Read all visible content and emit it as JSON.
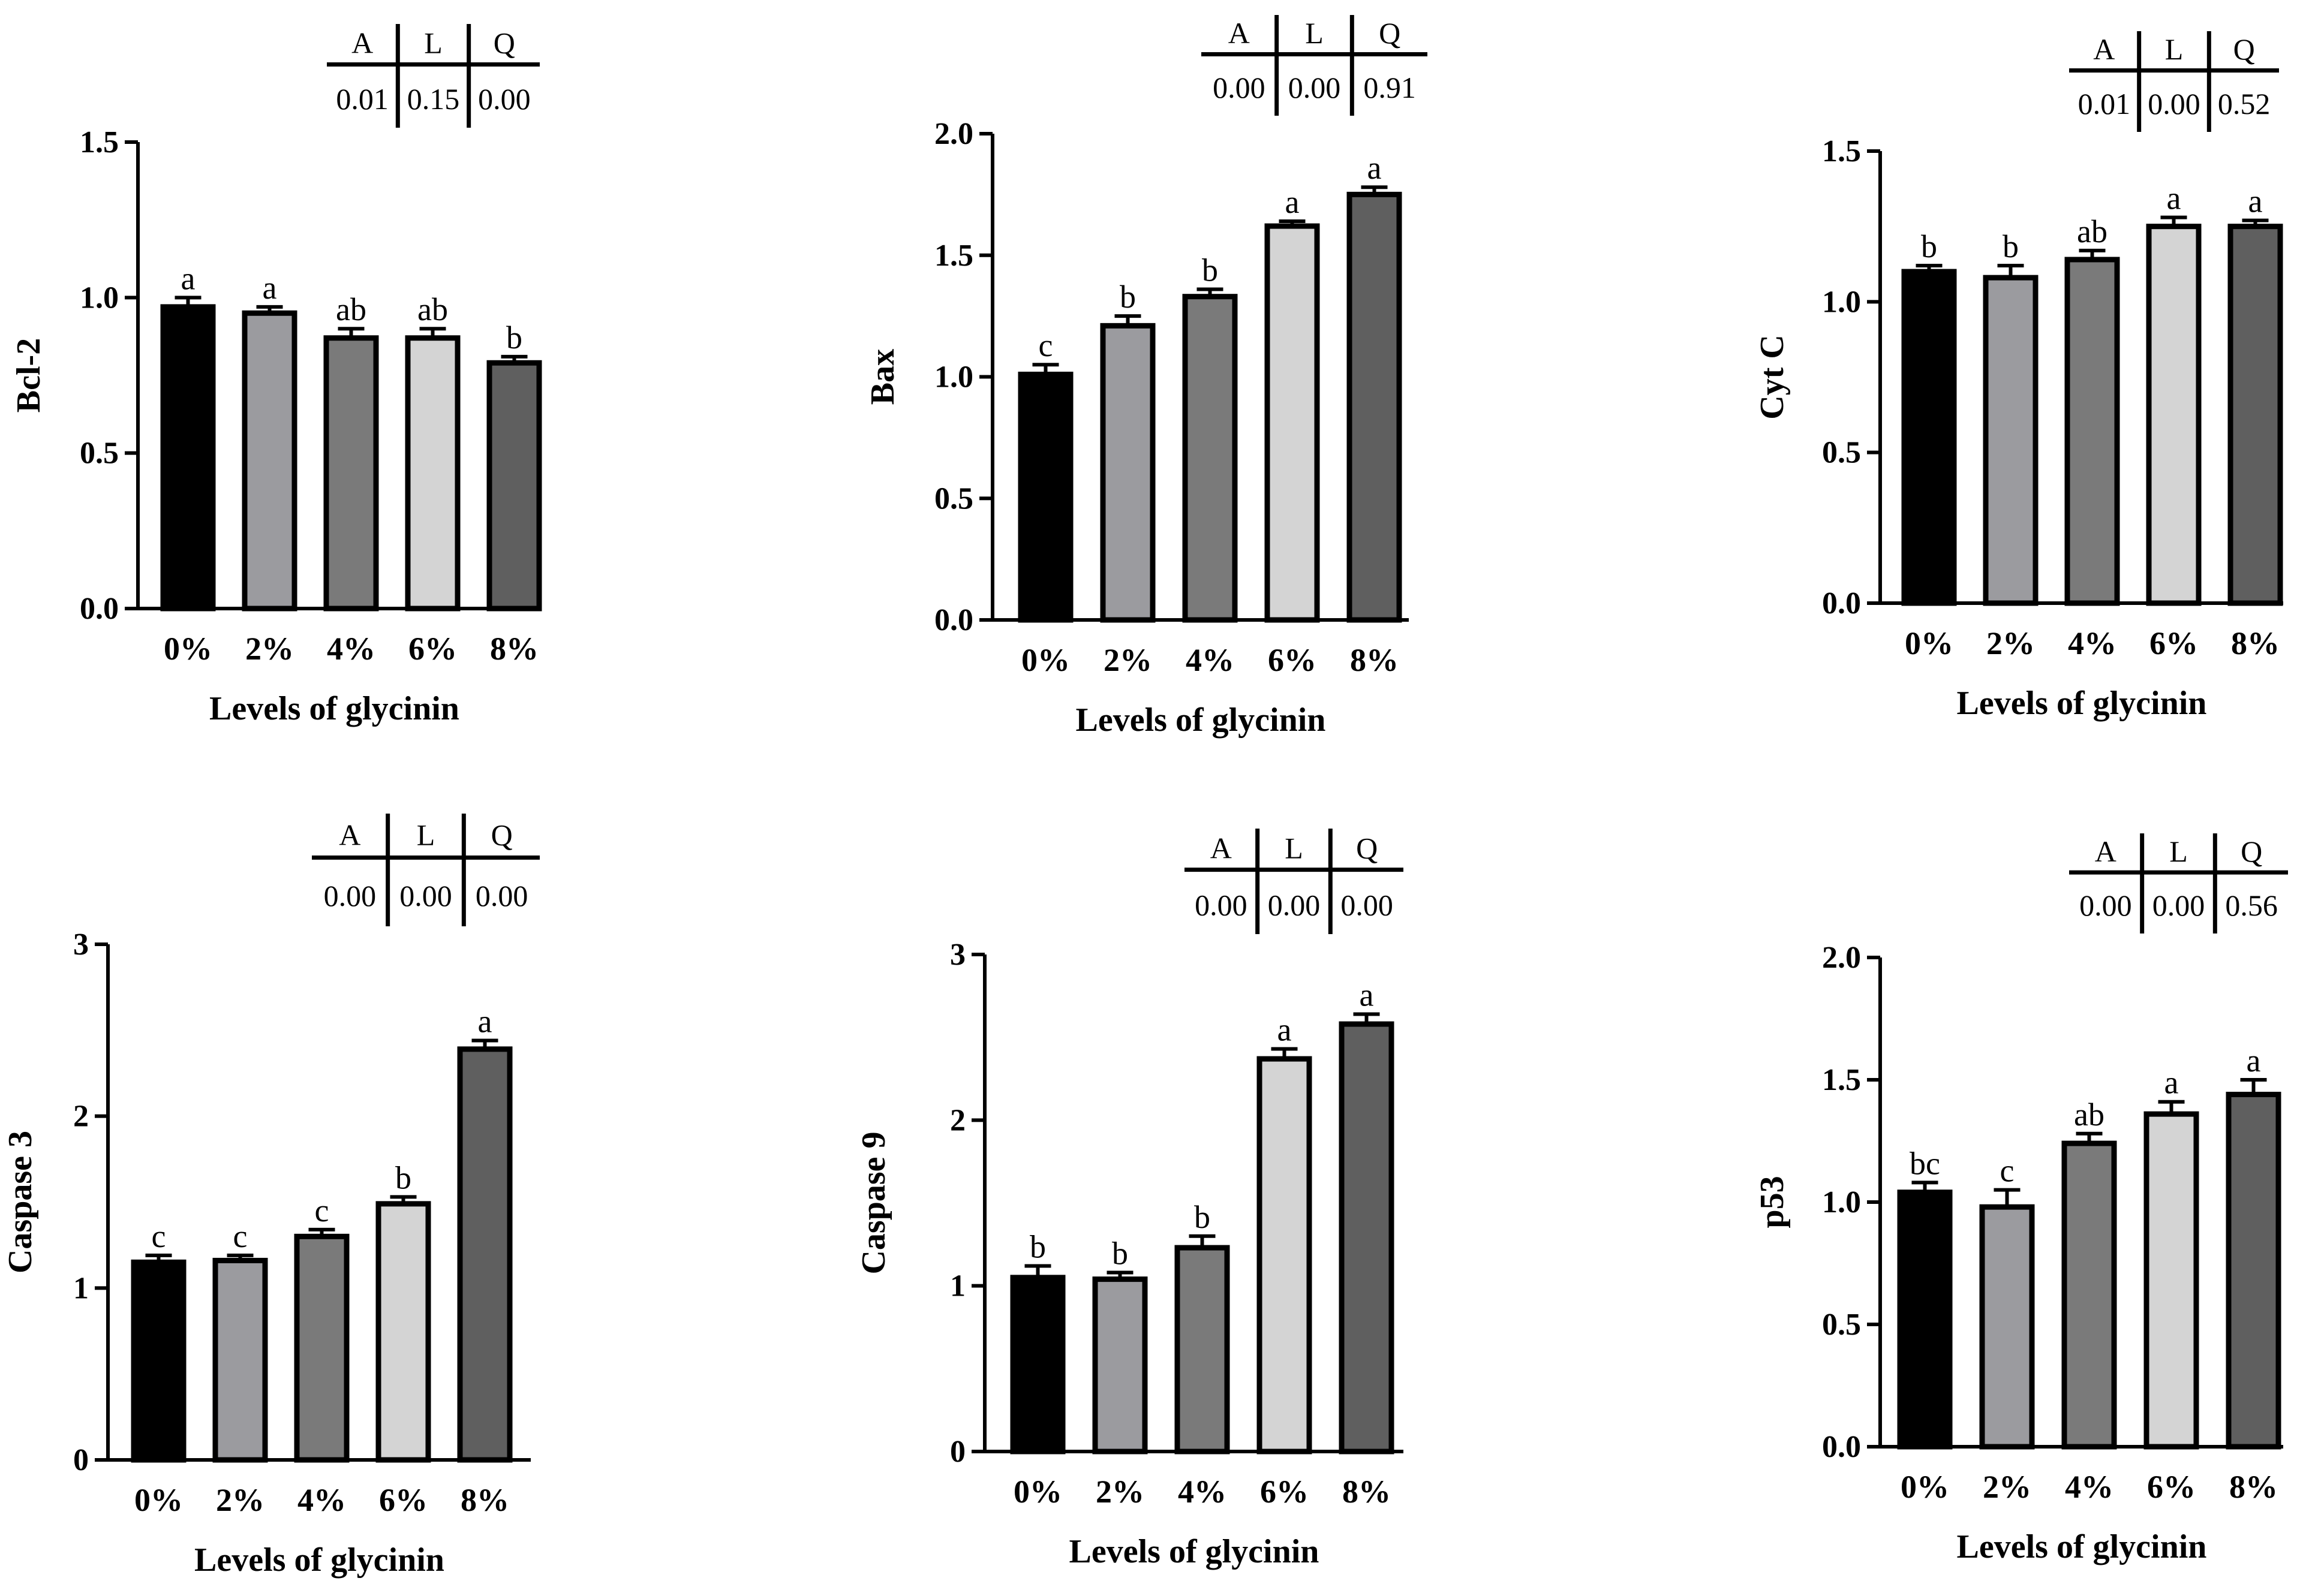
{
  "chart_data": [
    {
      "type": "bar",
      "ylabel": "Bcl-2",
      "xlabel": "Levels of glycinin",
      "categories": [
        "0%",
        "2%",
        "4%",
        "6%",
        "8%"
      ],
      "values": [
        0.97,
        0.95,
        0.87,
        0.87,
        0.79
      ],
      "errors": [
        0.03,
        0.02,
        0.03,
        0.03,
        0.02
      ],
      "letters": [
        "a",
        "a",
        "ab",
        "ab",
        "b"
      ],
      "ylim": [
        0,
        1.5
      ],
      "yticks": [
        "0.0",
        "0.5",
        "1.0",
        "1.5"
      ],
      "stats": {
        "headers": [
          "A",
          "L",
          "Q"
        ],
        "values": [
          "0.01",
          "0.15",
          "0.00"
        ]
      }
    },
    {
      "type": "bar",
      "ylabel": "Bax",
      "xlabel": "Levels of glycinin",
      "categories": [
        "0%",
        "2%",
        "4%",
        "6%",
        "8%"
      ],
      "values": [
        1.01,
        1.21,
        1.33,
        1.62,
        1.75
      ],
      "errors": [
        0.04,
        0.04,
        0.03,
        0.02,
        0.03
      ],
      "letters": [
        "c",
        "b",
        "b",
        "a",
        "a"
      ],
      "ylim": [
        0,
        2.0
      ],
      "yticks": [
        "0.0",
        "0.5",
        "1.0",
        "1.5",
        "2.0"
      ],
      "stats": {
        "headers": [
          "A",
          "L",
          "Q"
        ],
        "values": [
          "0.00",
          "0.00",
          "0.91"
        ]
      }
    },
    {
      "type": "bar",
      "ylabel": "Cyt C",
      "xlabel": "Levels of glycinin",
      "categories": [
        "0%",
        "2%",
        "4%",
        "6%",
        "8%"
      ],
      "values": [
        1.1,
        1.08,
        1.14,
        1.25,
        1.25
      ],
      "errors": [
        0.02,
        0.04,
        0.03,
        0.03,
        0.02
      ],
      "letters": [
        "b",
        "b",
        "ab",
        "a",
        "a"
      ],
      "ylim": [
        0,
        1.5
      ],
      "yticks": [
        "0.0",
        "0.5",
        "1.0",
        "1.5"
      ],
      "stats": {
        "headers": [
          "A",
          "L",
          "Q"
        ],
        "values": [
          "0.01",
          "0.00",
          "0.52"
        ]
      }
    },
    {
      "type": "bar",
      "ylabel": "Caspase 3",
      "xlabel": "Levels of glycinin",
      "categories": [
        "0%",
        "2%",
        "4%",
        "6%",
        "8%"
      ],
      "values": [
        1.15,
        1.16,
        1.3,
        1.49,
        2.39
      ],
      "errors": [
        0.04,
        0.03,
        0.04,
        0.04,
        0.05
      ],
      "letters": [
        "c",
        "c",
        "c",
        "b",
        "a"
      ],
      "ylim": [
        0,
        3
      ],
      "yticks": [
        "0",
        "1",
        "2",
        "3"
      ],
      "stats": {
        "headers": [
          "A",
          "L",
          "Q"
        ],
        "values": [
          "0.00",
          "0.00",
          "0.00"
        ]
      }
    },
    {
      "type": "bar",
      "ylabel": "Caspase 9",
      "xlabel": "Levels of glycinin",
      "categories": [
        "0%",
        "2%",
        "4%",
        "6%",
        "8%"
      ],
      "values": [
        1.05,
        1.04,
        1.23,
        2.37,
        2.58
      ],
      "errors": [
        0.07,
        0.04,
        0.07,
        0.06,
        0.06
      ],
      "letters": [
        "b",
        "b",
        "b",
        "a",
        "a"
      ],
      "ylim": [
        0,
        3
      ],
      "yticks": [
        "0",
        "1",
        "2",
        "3"
      ],
      "stats": {
        "headers": [
          "A",
          "L",
          "Q"
        ],
        "values": [
          "0.00",
          "0.00",
          "0.00"
        ]
      }
    },
    {
      "type": "bar",
      "ylabel": "p53",
      "xlabel": "Levels of glycinin",
      "categories": [
        "0%",
        "2%",
        "4%",
        "6%",
        "8%"
      ],
      "values": [
        1.04,
        0.98,
        1.24,
        1.36,
        1.44
      ],
      "errors": [
        0.04,
        0.07,
        0.04,
        0.05,
        0.06
      ],
      "letters": [
        "bc",
        "c",
        "ab",
        "a",
        "a"
      ],
      "ylim": [
        0,
        2.0
      ],
      "yticks": [
        "0.0",
        "0.5",
        "1.0",
        "1.5",
        "2.0"
      ],
      "stats": {
        "headers": [
          "A",
          "L",
          "Q"
        ],
        "values": [
          "0.00",
          "0.00",
          "0.56"
        ]
      }
    }
  ],
  "style": {
    "bar_colors": [
      "#000000",
      "#9b9b9f",
      "#7a7a7a",
      "#d4d4d4",
      "#5f5f5f"
    ],
    "stroke_color": "#000000"
  }
}
